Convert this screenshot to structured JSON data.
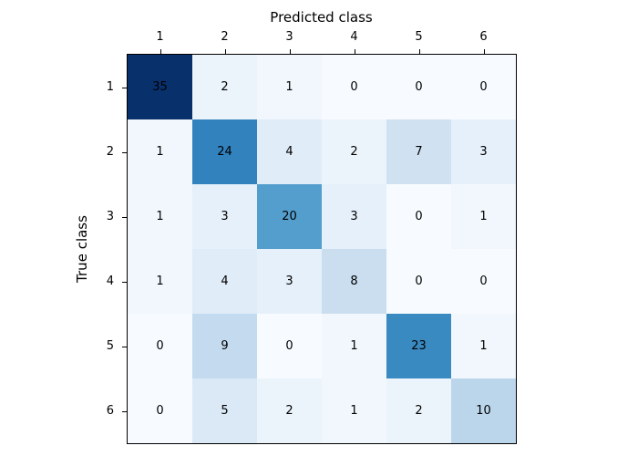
{
  "chart_data": {
    "type": "heatmap",
    "title": "",
    "xlabel": "Predicted class",
    "ylabel": "True class",
    "x_tick_labels": [
      "1",
      "2",
      "3",
      "4",
      "5",
      "6"
    ],
    "y_tick_labels": [
      "1",
      "2",
      "3",
      "4",
      "5",
      "6"
    ],
    "matrix": [
      [
        35,
        2,
        1,
        0,
        0,
        0
      ],
      [
        1,
        24,
        4,
        2,
        7,
        3
      ],
      [
        1,
        3,
        20,
        3,
        0,
        1
      ],
      [
        1,
        4,
        3,
        8,
        0,
        0
      ],
      [
        0,
        9,
        0,
        1,
        23,
        1
      ],
      [
        0,
        5,
        2,
        1,
        2,
        10
      ]
    ],
    "vmin": 0,
    "vmax": 35,
    "colormap": {
      "name": "Blues",
      "anchors": [
        "#f7fbff",
        "#deebf7",
        "#c6dbef",
        "#9ecae1",
        "#6baed6",
        "#4292c6",
        "#2171b5",
        "#08519c",
        "#08306b"
      ]
    },
    "cell_text_color": "#000000",
    "spine_color": "#000000",
    "background_color": "#ffffff",
    "legend": "none",
    "grid": "off"
  }
}
